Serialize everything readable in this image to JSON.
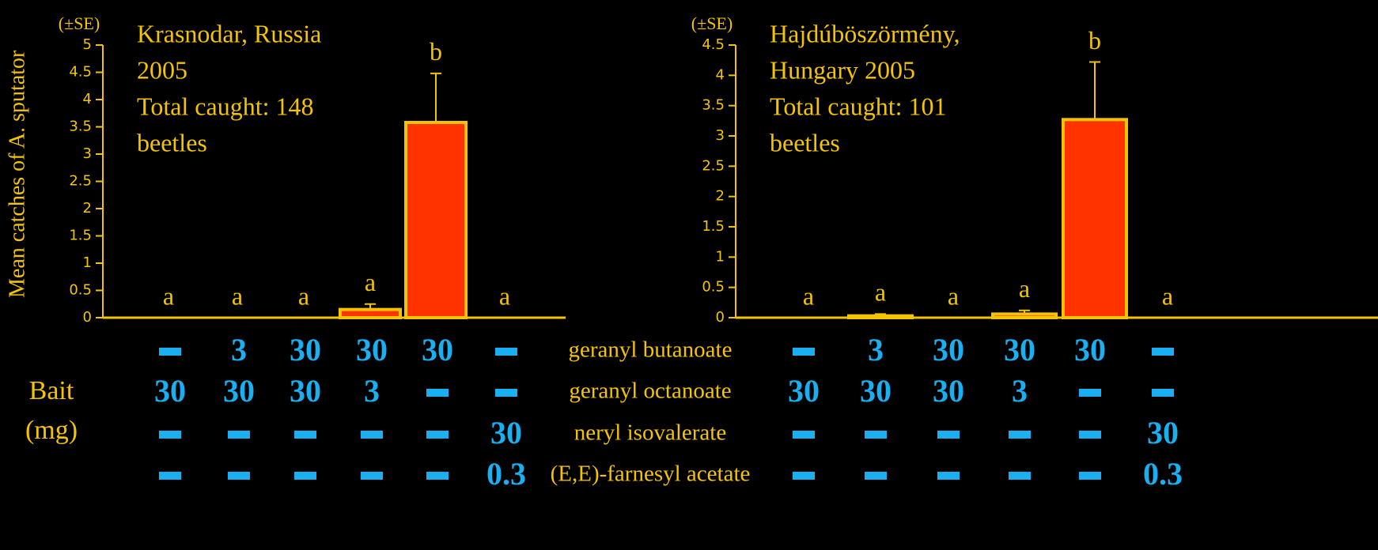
{
  "chart_data": [
    {
      "type": "bar",
      "title": [
        "Krasnodar, Russia",
        "2005",
        "Total caught: 148",
        "beetles"
      ],
      "ylabel": "Mean catches of A. sputator",
      "error_label": "(±SE)",
      "values": [
        0,
        0,
        0,
        0.15,
        3.58,
        0
      ],
      "errors": [
        0,
        0,
        0,
        0.1,
        0.9,
        0
      ],
      "letters": [
        "a",
        "a",
        "a",
        "a",
        "b",
        "a"
      ],
      "ylim": [
        0,
        5
      ],
      "yticks": [
        0,
        0.5,
        1,
        1.5,
        2,
        2.5,
        3,
        3.5,
        4,
        4.5,
        5
      ],
      "color": "#ff3300",
      "edge_color": "#f5c400"
    },
    {
      "type": "bar",
      "title": [
        "Hajdúböszörmény,",
        "Hungary 2005",
        "Total caught: 101",
        "beetles"
      ],
      "error_label": "(±SE)",
      "values": [
        0,
        0.03,
        0,
        0.06,
        3.27,
        0
      ],
      "errors": [
        0,
        0.03,
        0,
        0.06,
        0.95,
        0
      ],
      "letters": [
        "a",
        "a",
        "a",
        "a",
        "b",
        "a"
      ],
      "ylim": [
        0,
        4.5
      ],
      "yticks": [
        0,
        0.5,
        1,
        1.5,
        2,
        2.5,
        3,
        3.5,
        4,
        4.5
      ],
      "color": "#ff3300",
      "edge_color": "#f5c400"
    }
  ],
  "bait": {
    "label": [
      "Bait",
      "(mg)"
    ],
    "compounds": [
      "geranyl butanoate",
      "geranyl octanoate",
      "neryl isovalerate",
      "(E,E)-farnesyl acetate"
    ],
    "left": [
      [
        null,
        3,
        30,
        30,
        30,
        null
      ],
      [
        30,
        30,
        30,
        3,
        null,
        null
      ],
      [
        null,
        null,
        null,
        null,
        null,
        30
      ],
      [
        null,
        null,
        null,
        null,
        null,
        0.3
      ]
    ],
    "right": [
      [
        null,
        3,
        30,
        30,
        30,
        null
      ],
      [
        30,
        30,
        30,
        3,
        null,
        null
      ],
      [
        null,
        null,
        null,
        null,
        null,
        30
      ],
      [
        null,
        null,
        null,
        null,
        null,
        0.3
      ]
    ]
  }
}
